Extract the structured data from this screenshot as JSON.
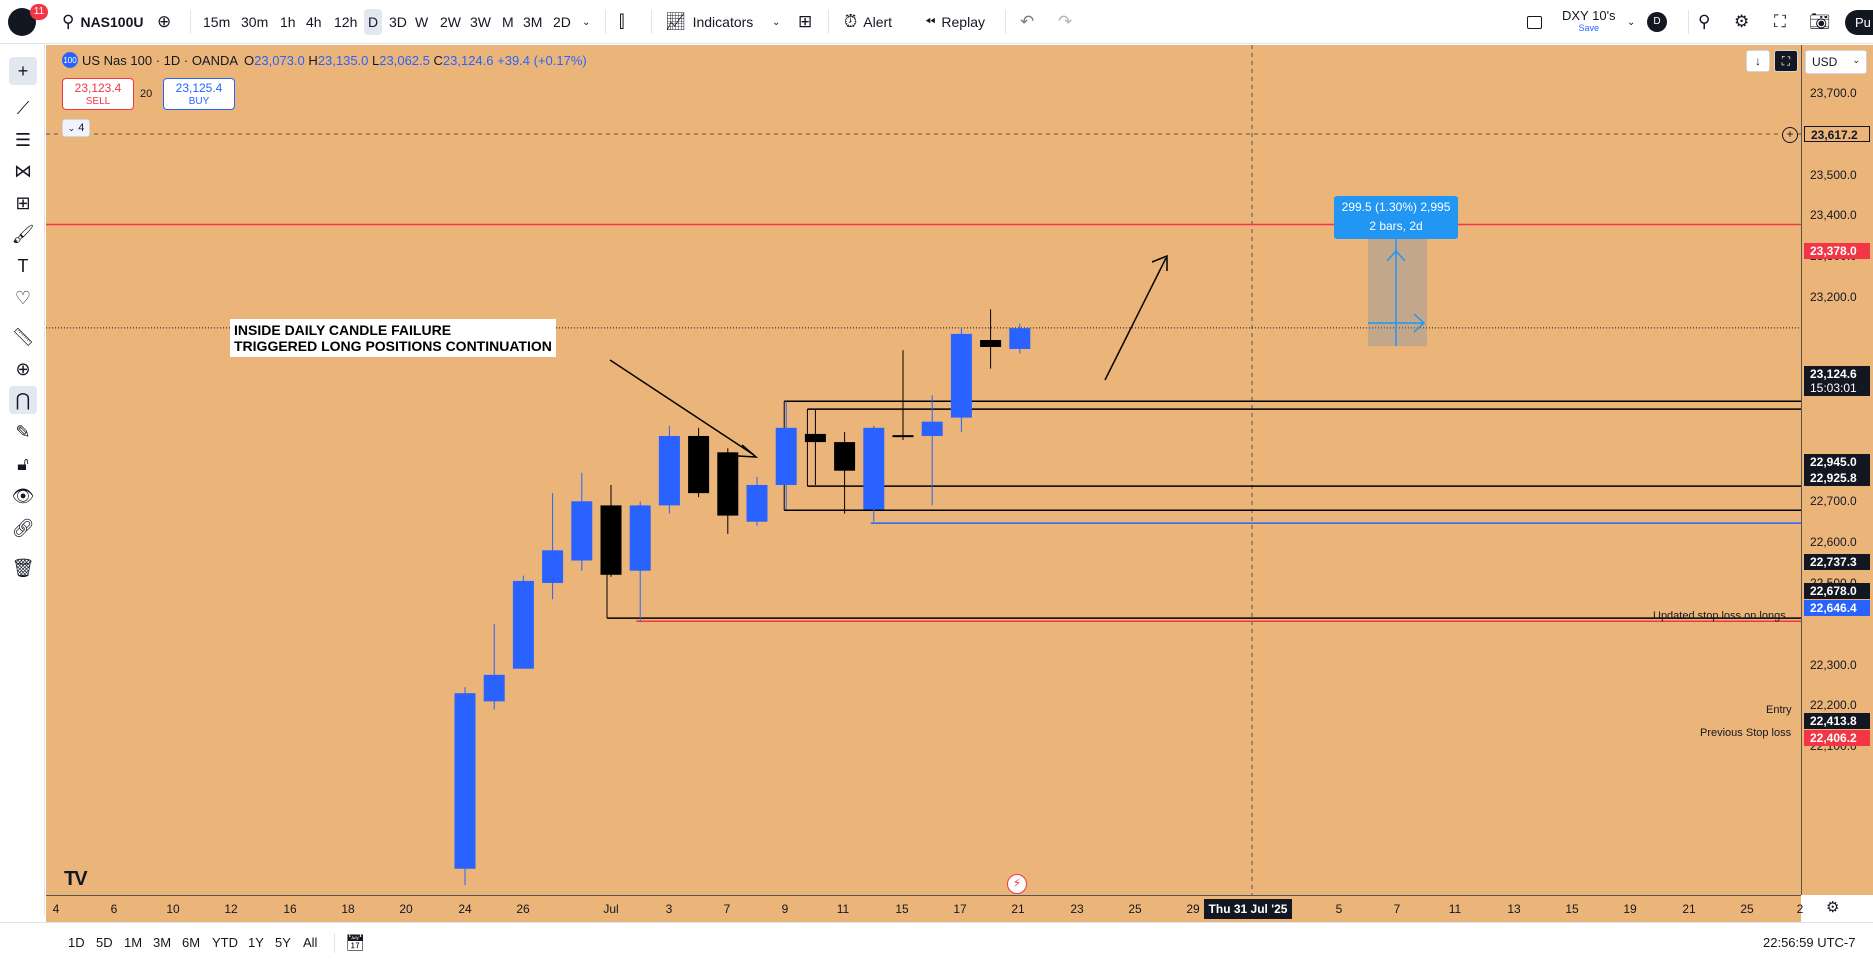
{
  "toolbar": {
    "notifications": "11",
    "symbol": "NAS100U",
    "intervals": [
      "15m",
      "30m",
      "1h",
      "4h",
      "12h",
      "D",
      "3D",
      "W",
      "2W",
      "3W",
      "M",
      "3M",
      "2D"
    ],
    "active_interval": "D",
    "indicators_label": "Indicators",
    "alert_label": "Alert",
    "replay_label": "Replay",
    "layout_name": "DXY 10's",
    "layout_status": "Save",
    "avatar_letter": "D",
    "publish_label": "Pu"
  },
  "legend": {
    "title": "US Nas 100 · 1D · OANDA",
    "open_label": "O",
    "open": "23,073.0",
    "high_label": "H",
    "high": "23,135.0",
    "low_label": "L",
    "low": "23,062.5",
    "close_label": "C",
    "close": "23,124.6",
    "change": "+39.4 (+0.17%)",
    "symbol_badge": "100"
  },
  "trade": {
    "sell_price": "23,123.4",
    "sell_label": "SELL",
    "spread": "20",
    "buy_price": "23,125.4",
    "buy_label": "BUY",
    "collapse_label": "4"
  },
  "annotations": {
    "note": "INSIDE DAILY CANDLE FAILURE\nTRIGGERED LONG POSITIONS CONTINUATION",
    "stop_label": "Updated stop loss on longs",
    "entry_label": "Entry",
    "prev_stop_label": "Previous Stop loss",
    "measure_line1": "299.5 (1.30%) 2,995",
    "measure_line2": "2 bars, 2d"
  },
  "price_axis": {
    "currency": "USD",
    "ticks": [
      "23,700.0",
      "23,500.0",
      "23,400.0",
      "23,300.0",
      "23,200.0",
      "23,000.0",
      "22,800.0",
      "22,700.0",
      "22,600.0",
      "22,500.0",
      "22,300.0",
      "22,200.0",
      "22,100.0"
    ],
    "flags": {
      "crosshair": "23,617.2",
      "resistance": "23,378.0",
      "last_price": "23,124.6",
      "countdown": "15:03:01",
      "level_a": "22,945.0",
      "level_b": "22,925.8",
      "level_c": "22,737.3",
      "level_d": "22,678.0",
      "stop": "22,646.4",
      "entry": "22,413.8",
      "prev_stop": "22,406.2"
    }
  },
  "time_axis": {
    "ticks": [
      "4",
      "6",
      "10",
      "12",
      "16",
      "18",
      "20",
      "24",
      "26",
      "Jul",
      "3",
      "7",
      "9",
      "11",
      "15",
      "17",
      "21",
      "23",
      "25",
      "29",
      "5",
      "7",
      "11",
      "13",
      "15",
      "19",
      "21",
      "25",
      "2"
    ],
    "crosshair_date": "Thu 31 Jul '25"
  },
  "bottom": {
    "ranges": [
      "1D",
      "5D",
      "1M",
      "3M",
      "6M",
      "YTD",
      "1Y",
      "5Y",
      "All"
    ],
    "clock": "22:56:59 UTC-7"
  },
  "chart_data": {
    "type": "candlestick",
    "title": "US Nas 100 · 1D · OANDA",
    "ylim": [
      22060,
      23780
    ],
    "candles": [
      {
        "date": "Jun 23",
        "o": 21800,
        "h": 22245,
        "l": 21760,
        "c": 22230,
        "dir": "up"
      },
      {
        "date": "Jun 24",
        "o": 22210,
        "h": 22400,
        "l": 22190,
        "c": 22275,
        "dir": "up"
      },
      {
        "date": "Jun 25",
        "o": 22290,
        "h": 22518,
        "l": 22300,
        "c": 22505,
        "dir": "up"
      },
      {
        "date": "Jun 26",
        "o": 22500,
        "h": 22720,
        "l": 22460,
        "c": 22580,
        "dir": "up"
      },
      {
        "date": "Jun 27",
        "o": 22555,
        "h": 22770,
        "l": 22530,
        "c": 22700,
        "dir": "up"
      },
      {
        "date": "Jun 30",
        "o": 22690,
        "h": 22740,
        "l": 22515,
        "c": 22520,
        "dir": "down"
      },
      {
        "date": "Jul 1",
        "o": 22530,
        "h": 22700,
        "l": 22405,
        "c": 22690,
        "dir": "up"
      },
      {
        "date": "Jul 2",
        "o": 22690,
        "h": 22885,
        "l": 22670,
        "c": 22860,
        "dir": "up"
      },
      {
        "date": "Jul 3",
        "o": 22860,
        "h": 22880,
        "l": 22710,
        "c": 22720,
        "dir": "down"
      },
      {
        "date": "Jul 7",
        "o": 22820,
        "h": 22830,
        "l": 22620,
        "c": 22665,
        "dir": "down"
      },
      {
        "date": "Jul 8",
        "o": 22650,
        "h": 22760,
        "l": 22640,
        "c": 22740,
        "dir": "up"
      },
      {
        "date": "Jul 9",
        "o": 22740,
        "h": 22945,
        "l": 22680,
        "c": 22880,
        "dir": "up"
      },
      {
        "date": "Jul 10",
        "o": 22865,
        "h": 22925,
        "l": 22740,
        "c": 22845,
        "dir": "down"
      },
      {
        "date": "Jul 11",
        "o": 22845,
        "h": 22870,
        "l": 22670,
        "c": 22775,
        "dir": "down"
      },
      {
        "date": "Jul 14",
        "o": 22680,
        "h": 22885,
        "l": 22650,
        "c": 22880,
        "dir": "up"
      },
      {
        "date": "Jul 15",
        "o": 22862,
        "h": 23070,
        "l": 22850,
        "c": 22858,
        "dir": "down"
      },
      {
        "date": "Jul 16",
        "o": 22860,
        "h": 22960,
        "l": 22690,
        "c": 22895,
        "dir": "up"
      },
      {
        "date": "Jul 17",
        "o": 22905,
        "h": 23125,
        "l": 22870,
        "c": 23110,
        "dir": "up"
      },
      {
        "date": "Jul 18",
        "o": 23095,
        "h": 23170,
        "l": 23025,
        "c": 23078,
        "dir": "down"
      },
      {
        "date": "Jul 21",
        "o": 23073,
        "h": 23135,
        "l": 23062,
        "c": 23124,
        "dir": "up"
      }
    ]
  }
}
